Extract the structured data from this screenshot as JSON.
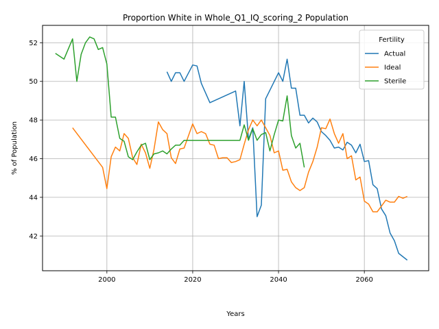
{
  "chart_data": {
    "type": "line",
    "title": "Proportion White in Whole_Q1_IQ_scoring_2 Population",
    "xlabel": "Years",
    "ylabel": "% of Population",
    "xlim": [
      1985,
      2075
    ],
    "ylim": [
      40.2,
      52.9
    ],
    "xticks": [
      2000,
      2020,
      2040,
      2060
    ],
    "yticks": [
      42,
      44,
      46,
      48,
      50,
      52
    ],
    "grid": true,
    "legend": {
      "title": "Fertility",
      "position": "top-right"
    },
    "series": [
      {
        "name": "Actual",
        "color": "#1f77b4",
        "x": [
          2014,
          2015,
          2016,
          2017,
          2018,
          2020,
          2021,
          2022,
          2024,
          2030,
          2031,
          2032,
          2033,
          2034,
          2035,
          2036,
          2037,
          2040,
          2041,
          2042,
          2043,
          2044,
          2045,
          2046,
          2047,
          2048,
          2049,
          2050,
          2051,
          2052,
          2053,
          2054,
          2055,
          2056,
          2057,
          2058,
          2059,
          2060,
          2061,
          2062,
          2063,
          2064,
          2065,
          2066,
          2067,
          2068,
          2070
        ],
        "y": [
          50.5,
          50.0,
          50.45,
          50.45,
          50.0,
          50.85,
          50.8,
          49.9,
          48.9,
          49.5,
          47.7,
          50.0,
          47.0,
          47.6,
          43.0,
          43.6,
          49.1,
          50.45,
          50.0,
          51.15,
          49.65,
          49.65,
          48.25,
          48.25,
          47.85,
          48.1,
          47.9,
          47.4,
          47.2,
          46.95,
          46.55,
          46.6,
          46.45,
          46.85,
          46.7,
          46.3,
          46.75,
          45.85,
          45.9,
          44.65,
          44.45,
          43.4,
          43.05,
          42.15,
          41.75,
          41.1,
          40.75
        ]
      },
      {
        "name": "Ideal",
        "color": "#ff7f0e",
        "x": [
          1992,
          1999,
          2000,
          2001,
          2002,
          2003,
          2004,
          2005,
          2006,
          2007,
          2008,
          2009,
          2010,
          2011,
          2012,
          2013,
          2014,
          2015,
          2016,
          2017,
          2018,
          2020,
          2021,
          2022,
          2023,
          2024,
          2025,
          2026,
          2027,
          2028,
          2029,
          2030,
          2031,
          2032,
          2033,
          2034,
          2035,
          2036,
          2037,
          2038,
          2039,
          2040,
          2041,
          2042,
          2043,
          2044,
          2045,
          2046,
          2047,
          2048,
          2049,
          2050,
          2051,
          2052,
          2053,
          2054,
          2055,
          2056,
          2057,
          2058,
          2059,
          2060,
          2061,
          2062,
          2063,
          2064,
          2065,
          2066,
          2067,
          2068,
          2069,
          2070
        ],
        "y": [
          47.6,
          45.55,
          44.45,
          46.1,
          46.6,
          46.4,
          47.3,
          47.05,
          46.05,
          45.7,
          46.75,
          46.3,
          45.5,
          46.5,
          47.9,
          47.5,
          47.3,
          46.05,
          45.75,
          46.5,
          46.55,
          47.8,
          47.3,
          47.4,
          47.3,
          46.75,
          46.7,
          46.0,
          46.05,
          46.05,
          45.8,
          45.85,
          45.95,
          46.75,
          47.5,
          48.0,
          47.7,
          48.0,
          47.6,
          47.2,
          46.3,
          46.4,
          45.4,
          45.45,
          44.8,
          44.5,
          44.35,
          44.5,
          45.3,
          45.85,
          46.6,
          47.6,
          47.55,
          48.05,
          47.3,
          46.8,
          47.3,
          46.0,
          46.15,
          44.9,
          45.05,
          43.8,
          43.65,
          43.25,
          43.25,
          43.55,
          43.85,
          43.75,
          43.75,
          44.05,
          43.95,
          44.05
        ]
      },
      {
        "name": "Sterile",
        "color": "#2ca02c",
        "x": [
          1988,
          1990,
          1992,
          1993,
          1994,
          1995,
          1996,
          1997,
          1998,
          1999,
          2000,
          2001,
          2002,
          2003,
          2004,
          2005,
          2006,
          2007,
          2008,
          2009,
          2010,
          2011,
          2012,
          2013,
          2014,
          2015,
          2016,
          2017,
          2018,
          2020,
          2022,
          2024,
          2026,
          2028,
          2030,
          2031,
          2032,
          2033,
          2034,
          2035,
          2036,
          2037,
          2038,
          2039,
          2040,
          2041,
          2042,
          2043,
          2044,
          2045,
          2046
        ],
        "y": [
          51.45,
          51.15,
          52.2,
          50.0,
          51.4,
          52.0,
          52.3,
          52.2,
          51.65,
          51.75,
          50.9,
          48.15,
          48.15,
          47.05,
          46.9,
          46.1,
          45.95,
          46.35,
          46.7,
          46.8,
          45.95,
          46.25,
          46.3,
          46.4,
          46.25,
          46.5,
          46.7,
          46.7,
          46.95,
          46.95,
          46.95,
          46.95,
          46.95,
          46.95,
          46.95,
          46.95,
          47.75,
          46.95,
          47.55,
          46.95,
          47.25,
          47.35,
          46.4,
          47.25,
          48.0,
          47.95,
          49.25,
          47.2,
          46.55,
          46.8,
          45.55
        ]
      }
    ]
  }
}
